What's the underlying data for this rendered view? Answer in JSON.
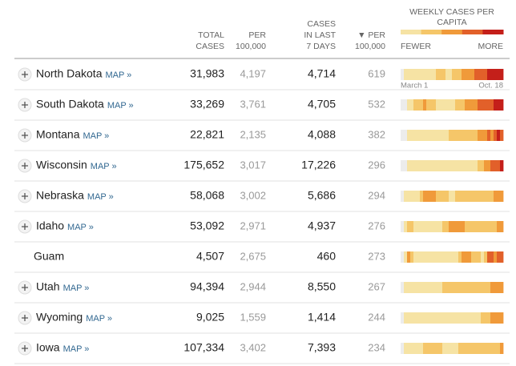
{
  "table": {
    "headers": {
      "total": [
        "TOTAL",
        "CASES"
      ],
      "per100k": [
        "PER",
        "100,000"
      ],
      "last7": [
        "CASES",
        "IN LAST",
        "7 DAYS"
      ],
      "per100k7": [
        "▼ PER",
        "100,000"
      ],
      "weekly": [
        "WEEKLY CASES PER",
        "CAPITA"
      ],
      "fewer": "FEWER",
      "more": "MORE"
    },
    "strip_start": "March 1",
    "strip_end": "Oct. 18",
    "scale_colors": [
      "#ececec",
      "#f6e3a4",
      "#f5c669",
      "#f09a3a",
      "#e2602a",
      "#c41f1a"
    ],
    "legend_levels": [
      1,
      2,
      3,
      4,
      5
    ],
    "rows": [
      {
        "name": "North Dakota",
        "map": "MAP »",
        "total": "31,983",
        "per100k": "4,197",
        "last7": "4,714",
        "per100k7": "619",
        "weekly": [
          0,
          1,
          1,
          1,
          1,
          1,
          1,
          1,
          1,
          1,
          1,
          2,
          2,
          2,
          1,
          1,
          2,
          2,
          2,
          3,
          3,
          3,
          3,
          4,
          4,
          4,
          4,
          5,
          5,
          5,
          5,
          5
        ]
      },
      {
        "name": "South Dakota",
        "map": "MAP »",
        "total": "33,269",
        "per100k": "3,761",
        "last7": "4,705",
        "per100k7": "532",
        "weekly": [
          0,
          0,
          1,
          1,
          2,
          2,
          2,
          3,
          2,
          2,
          2,
          1,
          1,
          1,
          1,
          1,
          1,
          2,
          2,
          2,
          3,
          3,
          3,
          3,
          4,
          4,
          4,
          4,
          4,
          5,
          5,
          5
        ]
      },
      {
        "name": "Montana",
        "map": "MAP »",
        "total": "22,821",
        "per100k": "2,135",
        "last7": "4,088",
        "per100k7": "382",
        "weekly": [
          0,
          0,
          1,
          1,
          1,
          1,
          1,
          1,
          1,
          1,
          1,
          1,
          1,
          1,
          1,
          2,
          2,
          2,
          2,
          2,
          2,
          2,
          2,
          2,
          3,
          3,
          3,
          4,
          3,
          4,
          5,
          4
        ]
      },
      {
        "name": "Wisconsin",
        "map": "MAP »",
        "total": "175,652",
        "per100k": "3,017",
        "last7": "17,226",
        "per100k7": "296",
        "weekly": [
          0,
          0,
          1,
          1,
          1,
          1,
          1,
          1,
          1,
          1,
          1,
          1,
          1,
          1,
          1,
          1,
          1,
          1,
          1,
          1,
          1,
          1,
          1,
          1,
          2,
          2,
          3,
          3,
          4,
          4,
          4,
          5
        ]
      },
      {
        "name": "Nebraska",
        "map": "MAP »",
        "total": "58,068",
        "per100k": "3,002",
        "last7": "5,686",
        "per100k7": "294",
        "weekly": [
          0,
          1,
          1,
          1,
          1,
          1,
          2,
          3,
          3,
          3,
          3,
          2,
          2,
          2,
          2,
          1,
          1,
          2,
          2,
          2,
          2,
          2,
          2,
          2,
          2,
          2,
          2,
          2,
          2,
          3,
          3,
          3
        ]
      },
      {
        "name": "Idaho",
        "map": "MAP »",
        "total": "53,092",
        "per100k": "2,971",
        "last7": "4,937",
        "per100k7": "276",
        "weekly": [
          0,
          1,
          2,
          2,
          1,
          1,
          1,
          1,
          1,
          1,
          1,
          1,
          1,
          2,
          2,
          3,
          3,
          3,
          3,
          3,
          2,
          2,
          2,
          2,
          2,
          2,
          2,
          2,
          2,
          2,
          3,
          3
        ]
      },
      {
        "name": "Guam",
        "map": null,
        "total": "4,507",
        "per100k": "2,675",
        "last7": "460",
        "per100k7": "273",
        "weekly": [
          0,
          1,
          3,
          2,
          1,
          1,
          1,
          1,
          1,
          1,
          1,
          1,
          1,
          1,
          1,
          1,
          1,
          1,
          2,
          3,
          3,
          3,
          2,
          2,
          2,
          1,
          2,
          4,
          4,
          3,
          4,
          4
        ]
      },
      {
        "name": "Utah",
        "map": "MAP »",
        "total": "94,394",
        "per100k": "2,944",
        "last7": "8,550",
        "per100k7": "267",
        "weekly": [
          0,
          1,
          1,
          1,
          1,
          1,
          1,
          1,
          1,
          1,
          1,
          1,
          1,
          2,
          2,
          2,
          2,
          2,
          2,
          2,
          2,
          2,
          2,
          2,
          2,
          2,
          2,
          2,
          3,
          3,
          3,
          3
        ]
      },
      {
        "name": "Wyoming",
        "map": "MAP »",
        "total": "9,025",
        "per100k": "1,559",
        "last7": "1,414",
        "per100k7": "244",
        "weekly": [
          0,
          1,
          1,
          1,
          1,
          1,
          1,
          1,
          1,
          1,
          1,
          1,
          1,
          1,
          1,
          1,
          1,
          1,
          1,
          1,
          1,
          1,
          1,
          1,
          1,
          2,
          2,
          2,
          3,
          3,
          3,
          3
        ]
      },
      {
        "name": "Iowa",
        "map": "MAP »",
        "total": "107,334",
        "per100k": "3,402",
        "last7": "7,393",
        "per100k7": "234",
        "weekly": [
          0,
          1,
          1,
          1,
          1,
          1,
          1,
          2,
          2,
          2,
          2,
          2,
          2,
          1,
          1,
          1,
          1,
          1,
          2,
          2,
          2,
          2,
          2,
          2,
          2,
          2,
          2,
          2,
          2,
          2,
          2,
          3
        ]
      }
    ]
  }
}
